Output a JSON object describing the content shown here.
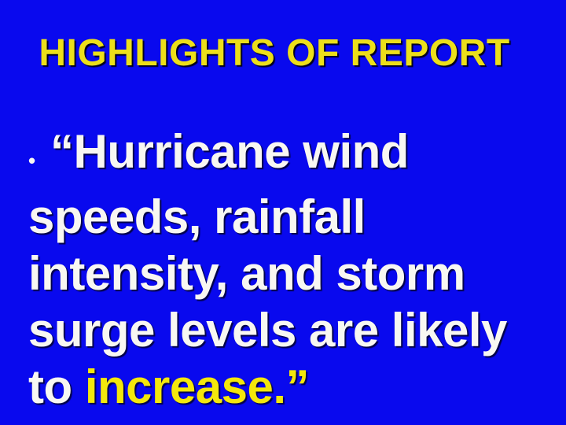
{
  "slide": {
    "background_color": "#0909ee",
    "title": {
      "text": "HIGHLIGHTS OF REPORT",
      "color": "#ecdf1a"
    },
    "body": {
      "bullet": "•",
      "text_color": "#f8f7f2",
      "highlight_color": "#f3e70c",
      "quote_full": "“Hurricane wind speeds, rainfall intensity, and storm surge levels are likely to increase.”",
      "lines": {
        "line1": "“Hurricane wind",
        "line2": "speeds, rainfall",
        "line3": "intensity, and storm",
        "line4": "surge levels are likely",
        "line5_white": "to ",
        "line5_highlight": "increase.”"
      }
    }
  }
}
